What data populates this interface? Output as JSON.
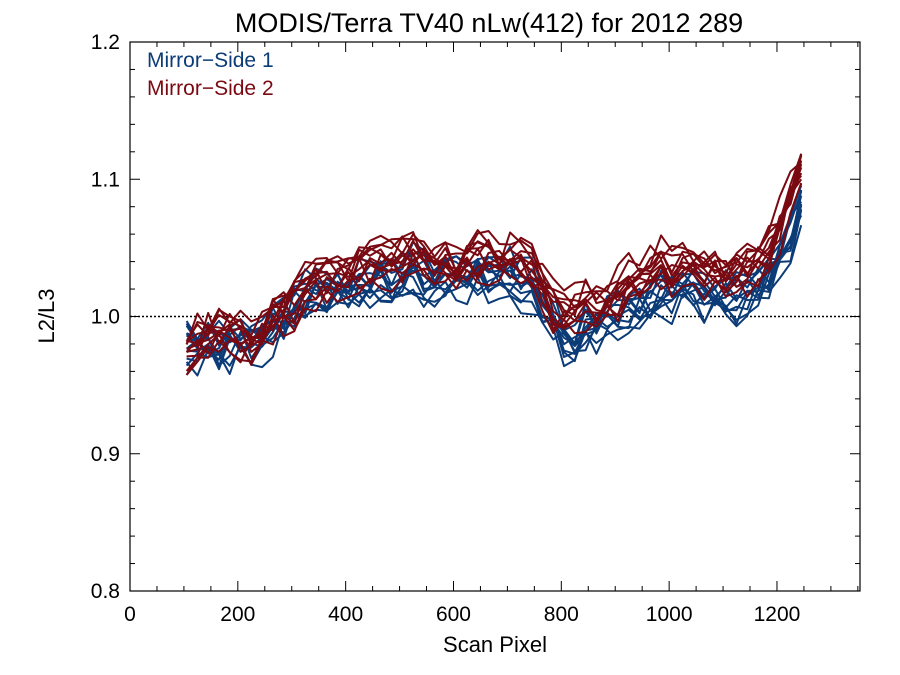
{
  "chart_data": {
    "type": "line",
    "title": "MODIS/Terra TV40 nLw(412) for 2012 289",
    "xlabel": "Scan Pixel",
    "ylabel": "L2/L3",
    "xlim": [
      0,
      1354
    ],
    "ylim": [
      0.8,
      1.2
    ],
    "xticks": [
      0,
      200,
      400,
      600,
      800,
      1000,
      1200
    ],
    "xtick_labels": [
      "0",
      "200",
      "400",
      "600",
      "800",
      "1000",
      "1200"
    ],
    "yticks": [
      0.8,
      0.9,
      1.0,
      1.1,
      1.2
    ],
    "ytick_labels": [
      "0.8",
      "0.9",
      "1.0",
      "1.1",
      "1.2"
    ],
    "reference_line": 1.0,
    "grid": false,
    "legend_placement": "top-left",
    "x": [
      105,
      125,
      145,
      165,
      185,
      205,
      225,
      245,
      265,
      285,
      305,
      325,
      345,
      365,
      385,
      405,
      425,
      445,
      465,
      485,
      505,
      525,
      545,
      565,
      585,
      605,
      625,
      645,
      665,
      685,
      705,
      725,
      745,
      765,
      785,
      805,
      825,
      845,
      865,
      885,
      905,
      925,
      945,
      965,
      985,
      1005,
      1025,
      1045,
      1065,
      1085,
      1105,
      1125,
      1145,
      1165,
      1185,
      1205,
      1225,
      1245
    ],
    "groups": [
      {
        "name": "Mirror−Side 1",
        "color": "#0c3c78",
        "profile": [
          0.982,
          0.976,
          0.98,
          0.975,
          0.98,
          0.985,
          0.98,
          0.985,
          0.992,
          0.998,
          1.004,
          1.012,
          1.018,
          1.015,
          1.02,
          1.015,
          1.022,
          1.02,
          1.026,
          1.024,
          1.03,
          1.032,
          1.028,
          1.025,
          1.03,
          1.027,
          1.028,
          1.03,
          1.03,
          1.026,
          1.028,
          1.023,
          1.022,
          1.01,
          0.998,
          0.985,
          0.978,
          0.992,
          0.99,
          1.0,
          0.998,
          1.004,
          1.008,
          1.012,
          1.016,
          1.014,
          1.02,
          1.018,
          1.01,
          1.015,
          1.014,
          1.012,
          1.018,
          1.022,
          1.028,
          1.04,
          1.058,
          1.08
        ],
        "offsets": [
          -0.012,
          -0.008,
          -0.004,
          0.0,
          0.004,
          0.008,
          0.012,
          -0.006,
          0.006,
          -0.002,
          0.002,
          0.01
        ],
        "noise_seed": 7
      },
      {
        "name": "Mirror−Side 2",
        "color": "#7a0a12",
        "profile": [
          0.975,
          0.982,
          0.988,
          0.986,
          0.99,
          0.985,
          0.982,
          0.99,
          0.998,
          1.003,
          1.008,
          1.018,
          1.025,
          1.025,
          1.028,
          1.032,
          1.035,
          1.036,
          1.038,
          1.04,
          1.042,
          1.044,
          1.04,
          1.036,
          1.038,
          1.034,
          1.04,
          1.042,
          1.044,
          1.042,
          1.046,
          1.04,
          1.036,
          1.02,
          1.008,
          1.002,
          1.004,
          1.01,
          1.006,
          1.012,
          1.018,
          1.025,
          1.03,
          1.035,
          1.038,
          1.034,
          1.04,
          1.036,
          1.032,
          1.034,
          1.03,
          1.032,
          1.036,
          1.04,
          1.05,
          1.066,
          1.085,
          1.11
        ],
        "offsets": [
          -0.012,
          -0.008,
          -0.004,
          0.0,
          0.004,
          0.008,
          0.012,
          -0.006,
          0.006,
          -0.002,
          0.002,
          0.01
        ],
        "noise_seed": 23
      }
    ]
  }
}
